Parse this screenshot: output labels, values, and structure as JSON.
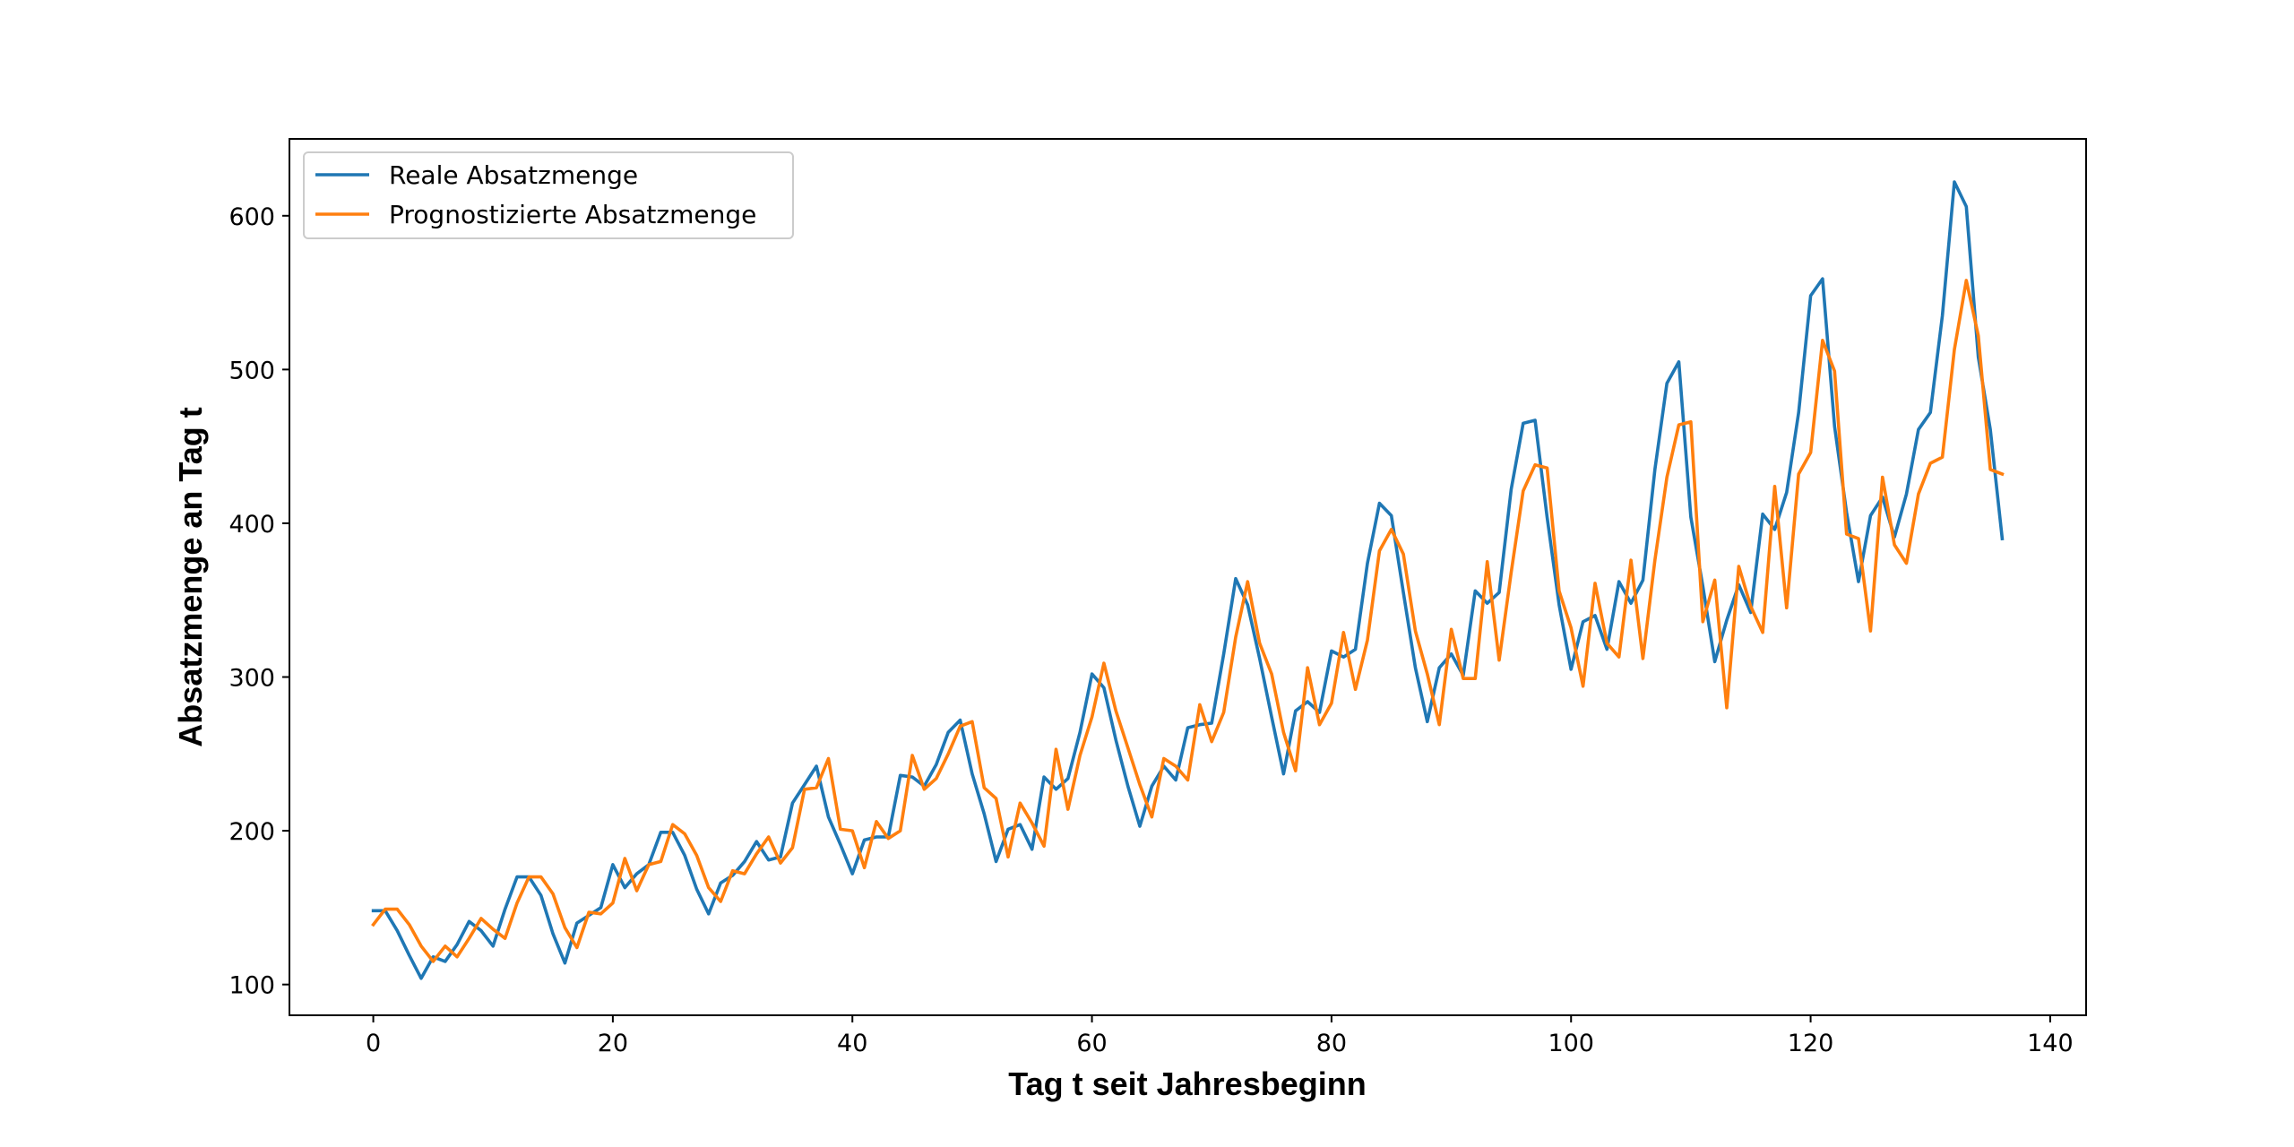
{
  "chart_data": {
    "type": "line",
    "title": "",
    "xlabel": "Tag t seit Jahresbeginn",
    "ylabel": "Absatzmenge an Tag t",
    "xlim": [
      -7,
      143
    ],
    "ylim": [
      80,
      650
    ],
    "xticks": [
      0,
      20,
      40,
      60,
      80,
      100,
      120,
      140
    ],
    "yticks": [
      100,
      200,
      300,
      400,
      500,
      600
    ],
    "legend_position": "top-left",
    "grid": false,
    "series": [
      {
        "name": "Reale Absatzmenge",
        "color": "#1f77b4",
        "x": [
          0,
          1,
          2,
          3,
          4,
          5,
          6,
          7,
          8,
          9,
          10,
          11,
          12,
          13,
          14,
          15,
          16,
          17,
          18,
          19,
          20,
          21,
          22,
          23,
          24,
          25,
          26,
          27,
          28,
          29,
          30,
          31,
          32,
          33,
          34,
          35,
          36,
          37,
          38,
          39,
          40,
          41,
          42,
          43,
          44,
          45,
          46,
          47,
          48,
          49,
          50,
          51,
          52,
          53,
          54,
          55,
          56,
          57,
          58,
          59,
          60,
          61,
          62,
          63,
          64,
          65,
          66,
          67,
          68,
          69,
          70,
          71,
          72,
          73,
          74,
          75,
          76,
          77,
          78,
          79,
          80,
          81,
          82,
          83,
          84,
          85,
          86,
          87,
          88,
          89,
          90,
          91,
          92,
          93,
          94,
          95,
          96,
          97,
          98,
          99,
          100,
          101,
          102,
          103,
          104,
          105,
          106,
          107,
          108,
          109,
          110,
          111,
          112,
          113,
          114,
          115,
          116,
          117,
          118,
          119,
          120,
          121,
          122,
          123,
          124,
          125,
          126,
          127,
          128,
          129,
          130,
          131,
          132,
          133,
          134,
          135,
          136
        ],
        "values": [
          148,
          148,
          135,
          119,
          104,
          118,
          115,
          126,
          141,
          135,
          125,
          149,
          170,
          170,
          158,
          133,
          114,
          140,
          145,
          150,
          178,
          163,
          172,
          178,
          199,
          199,
          184,
          162,
          146,
          166,
          171,
          180,
          193,
          181,
          183,
          218,
          230,
          242,
          209,
          191,
          172,
          194,
          196,
          196,
          236,
          235,
          229,
          243,
          264,
          272,
          237,
          211,
          180,
          201,
          204,
          188,
          235,
          227,
          234,
          264,
          302,
          293,
          259,
          229,
          203,
          229,
          242,
          233,
          267,
          269,
          270,
          315,
          364,
          347,
          312,
          274,
          237,
          278,
          284,
          277,
          317,
          313,
          318,
          374,
          413,
          405,
          355,
          306,
          271,
          306,
          315,
          301,
          356,
          348,
          355,
          422,
          465,
          467,
          404,
          347,
          305,
          336,
          340,
          318,
          362,
          348,
          363,
          435,
          491,
          505,
          404,
          359,
          310,
          337,
          360,
          342,
          406,
          396,
          420,
          472,
          548,
          559,
          463,
          407,
          362,
          405,
          417,
          391,
          419,
          461,
          472,
          535,
          622,
          606,
          508,
          461,
          390
        ]
      },
      {
        "name": "Prognostizierte Absatzmenge",
        "color": "#ff7f0e",
        "x": [
          0,
          1,
          2,
          3,
          4,
          5,
          6,
          7,
          8,
          9,
          10,
          11,
          12,
          13,
          14,
          15,
          16,
          17,
          18,
          19,
          20,
          21,
          22,
          23,
          24,
          25,
          26,
          27,
          28,
          29,
          30,
          31,
          32,
          33,
          34,
          35,
          36,
          37,
          38,
          39,
          40,
          41,
          42,
          43,
          44,
          45,
          46,
          47,
          48,
          49,
          50,
          51,
          52,
          53,
          54,
          55,
          56,
          57,
          58,
          59,
          60,
          61,
          62,
          63,
          64,
          65,
          66,
          67,
          68,
          69,
          70,
          71,
          72,
          73,
          74,
          75,
          76,
          77,
          78,
          79,
          80,
          81,
          82,
          83,
          84,
          85,
          86,
          87,
          88,
          89,
          90,
          91,
          92,
          93,
          94,
          95,
          96,
          97,
          98,
          99,
          100,
          101,
          102,
          103,
          104,
          105,
          106,
          107,
          108,
          109,
          110,
          111,
          112,
          113,
          114,
          115,
          116,
          117,
          118,
          119,
          120,
          121,
          122,
          123,
          124,
          125,
          126,
          127,
          128,
          129,
          130,
          131,
          132,
          133,
          134,
          135,
          136
        ],
        "values": [
          139,
          149,
          149,
          139,
          125,
          115,
          125,
          118,
          130,
          143,
          136,
          130,
          153,
          170,
          170,
          159,
          137,
          124,
          147,
          146,
          153,
          182,
          161,
          178,
          180,
          204,
          198,
          184,
          163,
          154,
          174,
          172,
          185,
          196,
          179,
          189,
          227,
          228,
          247,
          201,
          200,
          176,
          206,
          195,
          200,
          249,
          227,
          234,
          250,
          268,
          271,
          228,
          221,
          183,
          218,
          205,
          190,
          253,
          214,
          249,
          274,
          309,
          278,
          254,
          230,
          209,
          247,
          242,
          233,
          282,
          258,
          277,
          326,
          362,
          322,
          302,
          264,
          239,
          306,
          269,
          283,
          329,
          292,
          324,
          382,
          396,
          380,
          330,
          302,
          269,
          331,
          299,
          299,
          375,
          311,
          368,
          421,
          438,
          436,
          356,
          332,
          294,
          361,
          322,
          313,
          376,
          312,
          376,
          430,
          464,
          466,
          336,
          363,
          280,
          372,
          346,
          329,
          424,
          345,
          432,
          446,
          519,
          499,
          393,
          390,
          330,
          430,
          386,
          374,
          419,
          439,
          443,
          513,
          558,
          522,
          435,
          432
        ]
      }
    ]
  }
}
